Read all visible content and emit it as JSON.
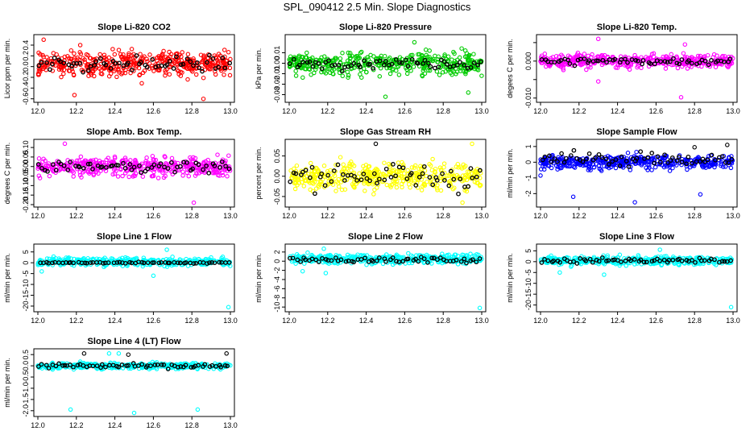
{
  "page": {
    "title": "SPL_090412  2.5 Min. Slope Diagnostics"
  },
  "chart_data": [
    {
      "type": "scatter",
      "title": "Slope Li-820 CO2",
      "ylabel": "Licor ppm per min.",
      "xlim": [
        12.0,
        13.0
      ],
      "xticks": [
        "12.0",
        "12.2",
        "12.4",
        "12.6",
        "12.8",
        "13.0"
      ],
      "ylim": [
        -0.62,
        0.55
      ],
      "yticks": [
        -0.6,
        -0.4,
        -0.2,
        0.0,
        0.2,
        0.4
      ],
      "yticklabels": [
        "-0.6",
        "-0.4",
        "-0.2",
        "0.0",
        "0.2",
        "0.4"
      ],
      "series": [
        {
          "name": "all points",
          "color": "#ff0000",
          "n": 440,
          "center": 0.05,
          "spread": 0.2,
          "extremes": [
            [
              12.03,
              0.5
            ],
            [
              12.19,
              -0.53
            ],
            [
              12.86,
              -0.6
            ],
            [
              12.22,
              0.4
            ]
          ]
        },
        {
          "name": "summary points",
          "color": "#000000",
          "n": 60,
          "center": 0.05,
          "spread": 0.12,
          "extremes": []
        }
      ]
    },
    {
      "type": "scatter",
      "title": "Slope Li-820 Pressure",
      "ylabel": "kPa per min.",
      "xlim": [
        12.0,
        13.0
      ],
      "xticks": [
        "12.0",
        "12.2",
        "12.4",
        "12.6",
        "12.8",
        "13.0"
      ],
      "ylim": [
        -0.035,
        0.025
      ],
      "yticks": [
        -0.03,
        -0.02,
        -0.01,
        0.0,
        0.01
      ],
      "yticklabels": [
        "-0.03",
        "-0.02",
        "-0.01",
        "0.00",
        "0.01"
      ],
      "series": [
        {
          "name": "all points",
          "color": "#00cc00",
          "n": 420,
          "center": 0.0,
          "spread": 0.009,
          "extremes": [
            [
              12.5,
              -0.032
            ],
            [
              12.93,
              -0.028
            ],
            [
              12.65,
              0.02
            ]
          ]
        },
        {
          "name": "summary points",
          "color": "#000000",
          "n": 60,
          "center": 0.0,
          "spread": 0.004,
          "extremes": []
        }
      ]
    },
    {
      "type": "scatter",
      "title": "Slope Li-820 Temp.",
      "ylabel": "degees C per min.",
      "xlim": [
        12.0,
        13.0
      ],
      "xticks": [
        "12.0",
        "12.2",
        "12.4",
        "12.6",
        "12.8",
        "13.0"
      ],
      "ylim": [
        -0.0105,
        0.0065
      ],
      "yticks": [
        -0.01,
        -0.005,
        0.0,
        0.005
      ],
      "yticklabels": [
        "-0.010",
        "",
        "0.000",
        ""
      ],
      "series": [
        {
          "name": "all points",
          "color": "#ff00ff",
          "n": 400,
          "center": 0.0,
          "spread": 0.0015,
          "extremes": [
            [
              12.73,
              -0.0098
            ],
            [
              12.3,
              -0.0055
            ],
            [
              12.3,
              0.006
            ],
            [
              12.75,
              0.0045
            ]
          ]
        },
        {
          "name": "summary points",
          "color": "#000000",
          "n": 60,
          "center": 0.0,
          "spread": 0.0008,
          "extremes": []
        }
      ]
    },
    {
      "type": "scatter",
      "title": "Slope Amb. Box Temp.",
      "ylabel": "degrees C per min.",
      "xlim": [
        12.0,
        13.0
      ],
      "xticks": [
        "12.0",
        "12.2",
        "12.4",
        "12.6",
        "12.8",
        "13.0"
      ],
      "ylim": [
        -0.2,
        0.13
      ],
      "yticks": [
        -0.2,
        -0.15,
        -0.1,
        -0.05,
        0.0,
        0.05,
        0.1
      ],
      "yticklabels": [
        "-0.20",
        "-0.15",
        "-0.10",
        "-0.05",
        "0.00",
        "0.05",
        "0.10"
      ],
      "series": [
        {
          "name": "all points",
          "color": "#ff00ff",
          "n": 420,
          "center": 0.0,
          "spread": 0.04,
          "extremes": [
            [
              12.81,
              -0.19
            ],
            [
              12.14,
              0.12
            ]
          ]
        },
        {
          "name": "summary points",
          "color": "#000000",
          "n": 60,
          "center": 0.0,
          "spread": 0.025,
          "extremes": []
        }
      ]
    },
    {
      "type": "scatter",
      "title": "Slope Gas Stream RH",
      "ylabel": "percent per min.",
      "xlim": [
        12.0,
        13.0
      ],
      "xticks": [
        "12.0",
        "12.2",
        "12.4",
        "12.6",
        "12.8",
        "13.0"
      ],
      "ylim": [
        -0.07,
        0.085
      ],
      "yticks": [
        -0.05,
        0.0,
        0.05
      ],
      "yticklabels": [
        "-0.05",
        "0.00",
        "0.05"
      ],
      "series": [
        {
          "name": "all points",
          "color": "#ffff00",
          "n": 420,
          "center": 0.0,
          "spread": 0.028,
          "extremes": [
            [
              12.95,
              0.08
            ],
            [
              12.9,
              -0.065
            ]
          ]
        },
        {
          "name": "summary points",
          "color": "#000000",
          "n": 60,
          "center": 0.0,
          "spread": 0.025,
          "extremes": [
            [
              12.45,
              0.08
            ]
          ]
        }
      ]
    },
    {
      "type": "scatter",
      "title": "Slope Sample Flow",
      "ylabel": "ml/min per min.",
      "xlim": [
        12.0,
        13.0
      ],
      "xticks": [
        "12.0",
        "12.2",
        "12.4",
        "12.6",
        "12.8",
        "13.0"
      ],
      "ylim": [
        -2.7,
        1.3
      ],
      "yticks": [
        -2,
        -1,
        0,
        1
      ],
      "yticklabels": [
        "-2",
        "-1",
        "0",
        "1"
      ],
      "series": [
        {
          "name": "all points",
          "color": "#0000ff",
          "n": 420,
          "center": 0.0,
          "spread": 0.35,
          "extremes": [
            [
              12.17,
              -2.2
            ],
            [
              12.49,
              -2.55
            ],
            [
              12.83,
              -2.05
            ],
            [
              12.0,
              -0.85
            ]
          ]
        },
        {
          "name": "summary points",
          "color": "#000000",
          "n": 60,
          "center": 0.2,
          "spread": 0.4,
          "extremes": [
            [
              12.97,
              1.1
            ],
            [
              12.8,
              0.95
            ]
          ]
        }
      ]
    },
    {
      "type": "scatter",
      "title": "Slope Line 1 Flow",
      "ylabel": "ml/min per min.",
      "xlim": [
        12.0,
        13.0
      ],
      "xticks": [
        "12.0",
        "12.2",
        "12.4",
        "12.6",
        "12.8",
        "13.0"
      ],
      "ylim": [
        -21.5,
        7.5
      ],
      "yticks": [
        -20,
        -15,
        -10,
        -5,
        0,
        5
      ],
      "yticklabels": [
        "-20",
        "-15",
        "-10",
        "-5",
        "0",
        "5"
      ],
      "series": [
        {
          "name": "all points",
          "color": "#00ffff",
          "n": 400,
          "center": 0.5,
          "spread": 1.5,
          "extremes": [
            [
              12.99,
              -20.5
            ],
            [
              12.6,
              -6
            ],
            [
              12.02,
              -4
            ],
            [
              12.67,
              6
            ]
          ]
        },
        {
          "name": "summary points",
          "color": "#000000",
          "n": 60,
          "center": 0.0,
          "spread": 0.3,
          "extremes": []
        }
      ]
    },
    {
      "type": "scatter",
      "title": "Slope Line 2 Flow",
      "ylabel": "ml/min per min.",
      "xlim": [
        12.0,
        13.0
      ],
      "xticks": [
        "12.0",
        "12.2",
        "12.4",
        "12.6",
        "12.8",
        "13.0"
      ],
      "ylim": [
        -10.5,
        3.2
      ],
      "yticks": [
        -10,
        -8,
        -6,
        -4,
        -2,
        0,
        2
      ],
      "yticklabels": [
        "-10",
        "-8",
        "-6",
        "-4",
        "-2",
        "0",
        "2"
      ],
      "series": [
        {
          "name": "all points",
          "color": "#00ffff",
          "n": 400,
          "center": 0.5,
          "spread": 0.8,
          "extremes": [
            [
              12.99,
              -10.2
            ],
            [
              12.07,
              -2.2
            ],
            [
              12.19,
              -2.6
            ],
            [
              12.18,
              2.7
            ]
          ]
        },
        {
          "name": "summary points",
          "color": "#000000",
          "n": 60,
          "center": 0.3,
          "spread": 0.6,
          "extremes": []
        }
      ]
    },
    {
      "type": "scatter",
      "title": "Slope Line 3 Flow",
      "ylabel": "ml/min per min.",
      "xlim": [
        12.0,
        13.0
      ],
      "xticks": [
        "12.0",
        "12.2",
        "12.4",
        "12.6",
        "12.8",
        "13.0"
      ],
      "ylim": [
        -22,
        7
      ],
      "yticks": [
        -20,
        -15,
        -10,
        -5,
        0,
        5
      ],
      "yticklabels": [
        "-20",
        "-15",
        "-10",
        "-5",
        "0",
        "5"
      ],
      "series": [
        {
          "name": "all points",
          "color": "#00ffff",
          "n": 400,
          "center": 0.5,
          "spread": 1.5,
          "extremes": [
            [
              12.99,
              -21
            ],
            [
              12.1,
              -5
            ],
            [
              12.33,
              -6
            ],
            [
              12.62,
              5.5
            ]
          ]
        },
        {
          "name": "summary points",
          "color": "#000000",
          "n": 60,
          "center": 0.5,
          "spread": 1.0,
          "extremes": []
        }
      ]
    },
    {
      "type": "scatter",
      "title": "Slope Line 4 (LT) Flow",
      "ylabel": "ml/min per min.",
      "xlim": [
        12.0,
        13.0
      ],
      "xticks": [
        "12.0",
        "12.2",
        "12.4",
        "12.6",
        "12.8",
        "13.0"
      ],
      "ylim": [
        -2.15,
        0.65
      ],
      "yticks": [
        -2.0,
        -1.5,
        -1.0,
        -0.5,
        0.0,
        0.5
      ],
      "yticklabels": [
        "-2.0",
        "-1.5",
        "-1.0",
        "-0.5",
        "0.0",
        "0.5"
      ],
      "series": [
        {
          "name": "all points",
          "color": "#00ffff",
          "n": 380,
          "center": 0.0,
          "spread": 0.12,
          "extremes": [
            [
              12.17,
              -1.95
            ],
            [
              12.5,
              -2.1
            ],
            [
              12.83,
              -1.95
            ],
            [
              12.42,
              0.55
            ],
            [
              12.37,
              0.55
            ]
          ]
        },
        {
          "name": "summary points",
          "color": "#000000",
          "n": 60,
          "center": 0.0,
          "spread": 0.08,
          "extremes": [
            [
              12.24,
              0.55
            ],
            [
              12.47,
              0.5
            ],
            [
              12.98,
              0.55
            ]
          ]
        }
      ]
    }
  ]
}
